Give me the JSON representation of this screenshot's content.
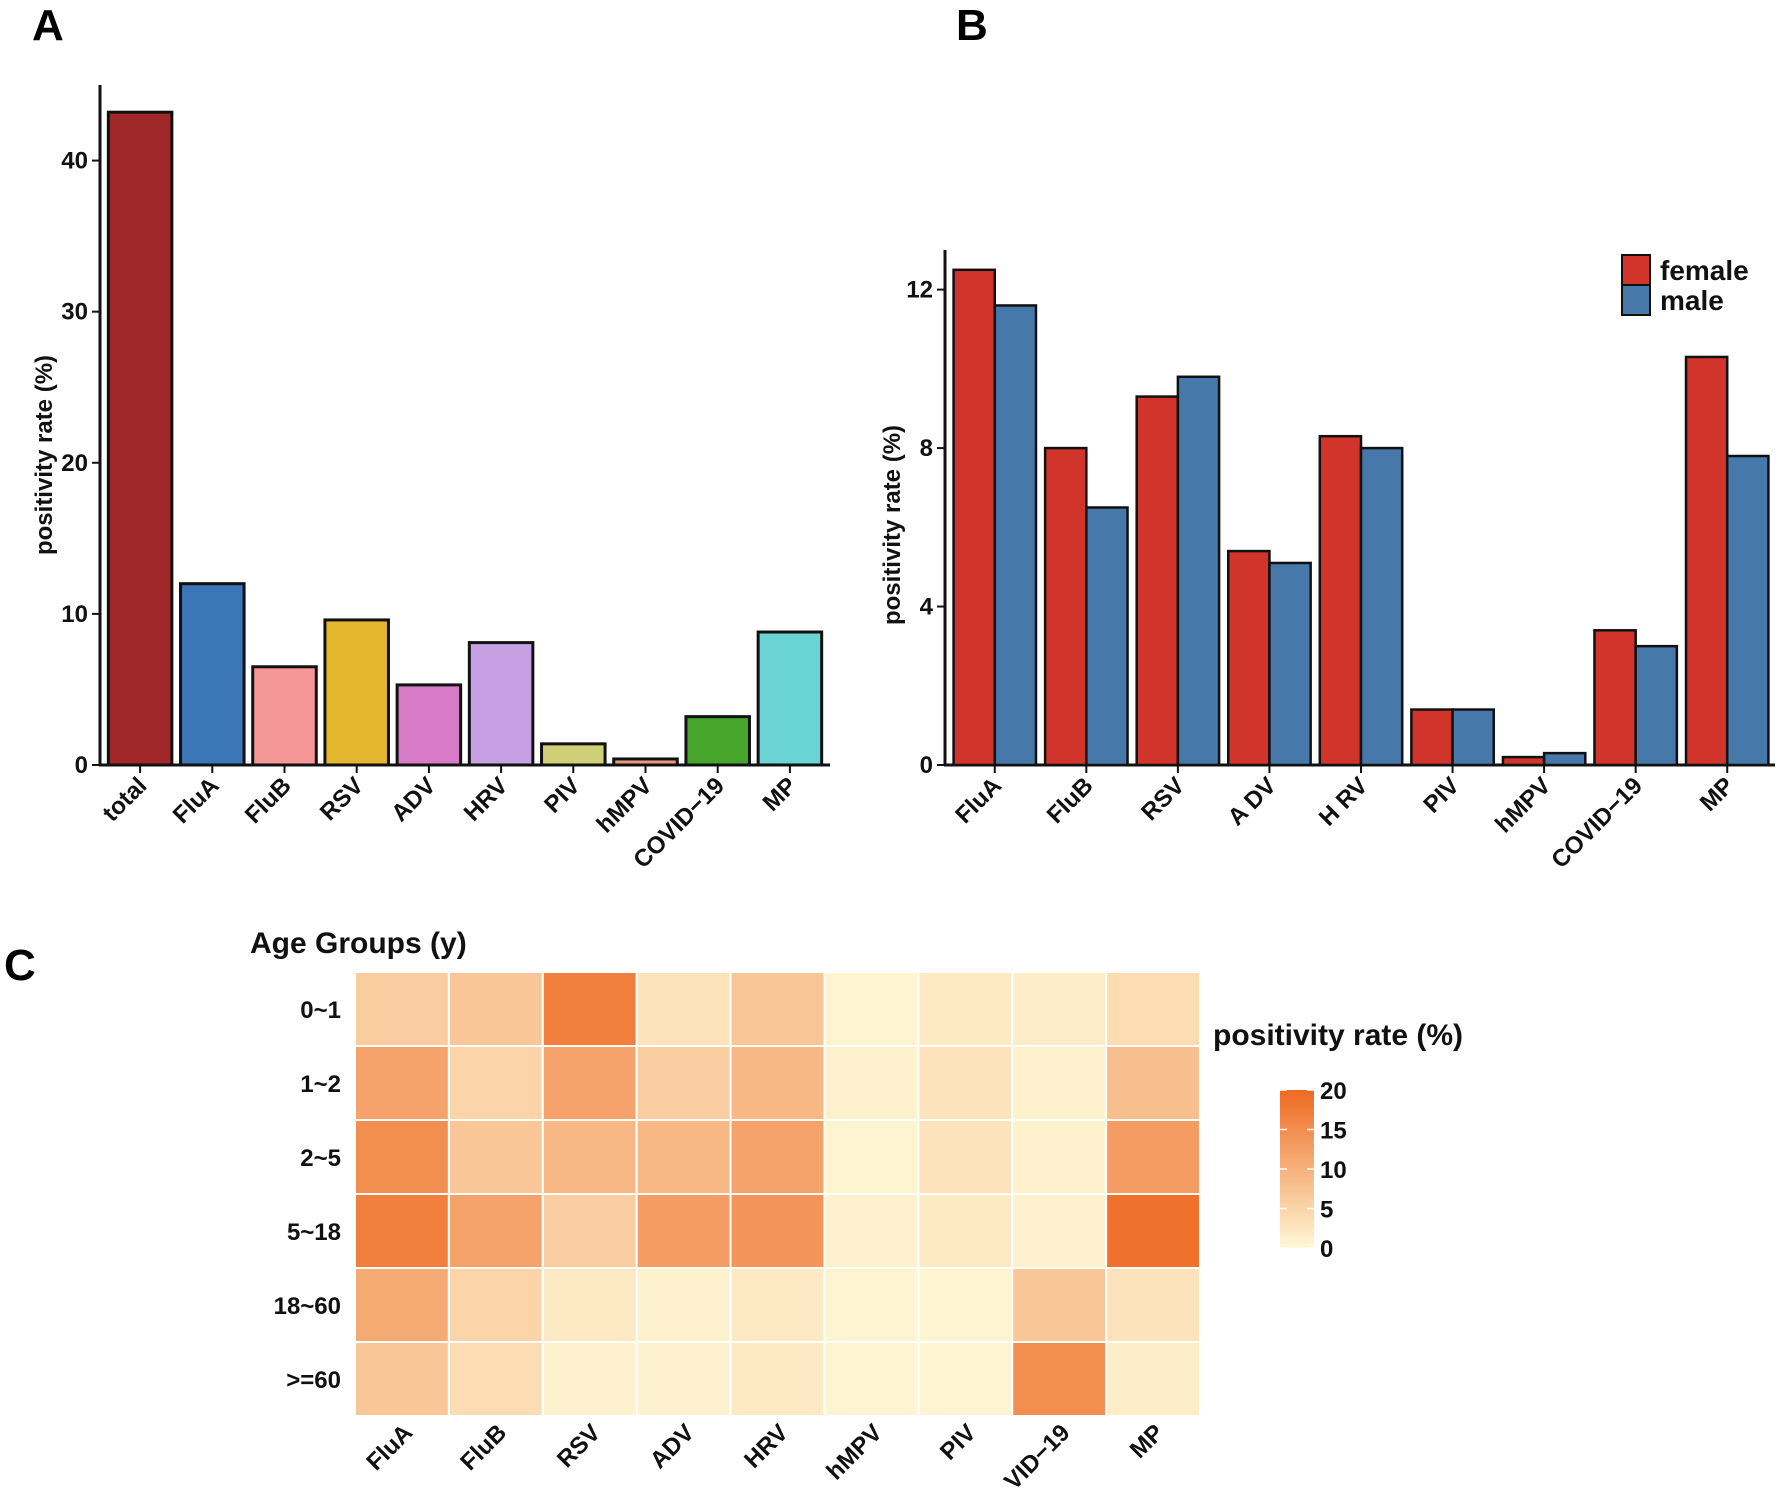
{
  "panels": {
    "a": "A",
    "b": "B",
    "c": "C"
  },
  "chart_data": [
    {
      "type": "bar",
      "panel": "A",
      "categories": [
        "total",
        "FluA",
        "FluB",
        "RSV",
        "ADV",
        "HRV",
        "PIV",
        "hMPV",
        "COVID−19",
        "MP"
      ],
      "values": [
        43.2,
        12.0,
        6.5,
        9.6,
        5.3,
        8.1,
        1.4,
        0.4,
        3.2,
        8.8
      ],
      "colors": [
        "#a02828",
        "#3a76b8",
        "#f59797",
        "#e4b62e",
        "#d77bc6",
        "#c6a0e3",
        "#cfcf78",
        "#e89a7c",
        "#46a52a",
        "#6ad3d3"
      ],
      "ylabel": "positivity rate (%)",
      "ylim": [
        0,
        45
      ],
      "yticks": [
        0,
        10,
        20,
        30,
        40
      ],
      "ytick_labels": [
        "0",
        "10",
        "20",
        "30",
        "40"
      ]
    },
    {
      "type": "bar",
      "panel": "B",
      "categories": [
        "FluA",
        "FluB",
        "RSV",
        "A DV",
        "H RV",
        "PIV",
        "hMPV",
        "COVID−19",
        "MP"
      ],
      "series": [
        {
          "name": "female",
          "color": "#d0342a",
          "values": [
            12.5,
            8.0,
            9.3,
            5.4,
            8.3,
            1.4,
            0.2,
            3.4,
            10.3
          ]
        },
        {
          "name": "male",
          "color": "#4678aa",
          "values": [
            11.6,
            6.5,
            9.8,
            5.1,
            8.0,
            1.4,
            0.3,
            3.0,
            7.8
          ]
        }
      ],
      "ylabel": "positivity rate (%)",
      "ylim": [
        0,
        13
      ],
      "yticks": [
        0,
        4,
        8,
        12
      ],
      "ytick_labels": [
        "0",
        "4",
        "8",
        "12"
      ],
      "legend_position": "top-right"
    },
    {
      "type": "heatmap",
      "panel": "C",
      "title": "Age Groups (y)",
      "rows": [
        "0~1",
        "1~2",
        "2~5",
        "5~18",
        "18~60",
        ">=60"
      ],
      "columns": [
        "FluA",
        "FluB",
        "RSV",
        "ADV",
        "HRV",
        "hMPV",
        "PIV",
        "VID−19",
        "MP"
      ],
      "values": [
        [
          6,
          7,
          17,
          3,
          7,
          0.5,
          2,
          1.5,
          4
        ],
        [
          12,
          5,
          12,
          6,
          9,
          1,
          3,
          1,
          8
        ],
        [
          15,
          7,
          9,
          9,
          12,
          0.5,
          3,
          1,
          13
        ],
        [
          17,
          12,
          6,
          13,
          14,
          1,
          2,
          1,
          19
        ],
        [
          11,
          5,
          2,
          1,
          2,
          0.5,
          0.5,
          7,
          3
        ],
        [
          7,
          4,
          1,
          1,
          2,
          0.5,
          0.5,
          15,
          1.5
        ]
      ],
      "colorbar": {
        "title": "positivity rate (%)",
        "min": 0,
        "max": 20,
        "ticks": [
          0,
          5,
          10,
          15,
          20
        ],
        "tick_labels": [
          "0",
          "5",
          "10",
          "15",
          "20"
        ],
        "low_color": "#fff8d6",
        "high_color": "#ee6a22"
      }
    }
  ]
}
